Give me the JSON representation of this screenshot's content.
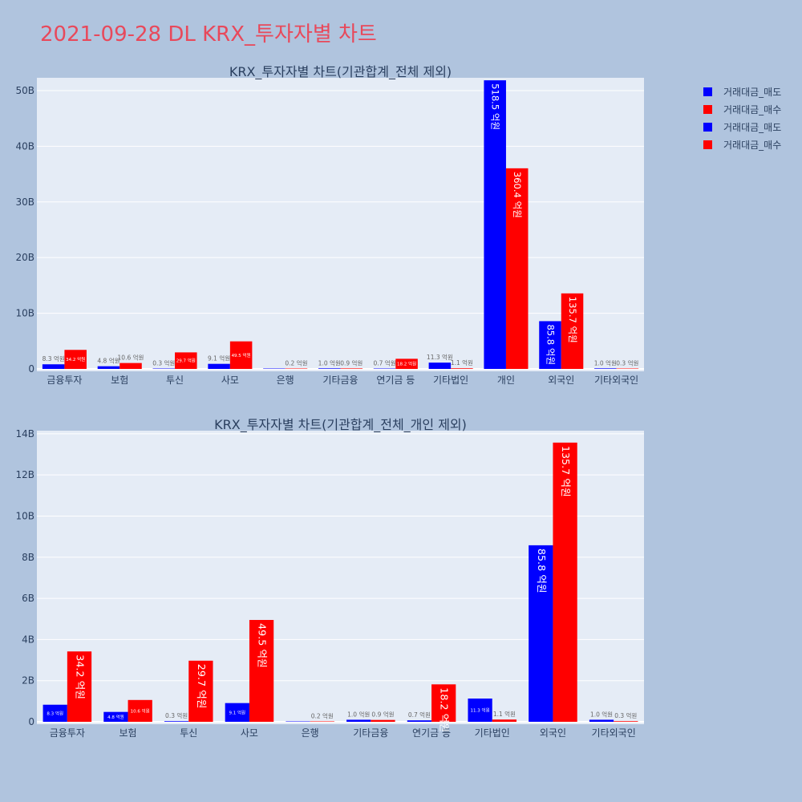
{
  "main_title": "2021-09-28 DL KRX_투자자별 차트",
  "colors": {
    "sell": "#0000ff",
    "buy": "#ff0000",
    "plot_bg": "#e5ecf6",
    "page_bg": "#b0c4de",
    "title": "#e8495b"
  },
  "legend": [
    "거래대금_매도",
    "거래대금_매수",
    "거래대금_매도",
    "거래대금_매수"
  ],
  "chart_data": [
    {
      "type": "bar",
      "title": "KRX_투자자별 차트(기관합계_전체 제외)",
      "categories": [
        "금융투자",
        "보험",
        "투신",
        "사모",
        "은행",
        "기타금융",
        "연기금 등",
        "기타법인",
        "개인",
        "외국인",
        "기타외국인"
      ],
      "series": [
        {
          "name": "거래대금_매도",
          "values": [
            0.83,
            0.48,
            0.03,
            0.91,
            0.0,
            0.1,
            0.07,
            1.13,
            51.85,
            8.58,
            0.1
          ],
          "labels": [
            "8.3 억원",
            "4.8 억원",
            "0.3 억원",
            "9.1 억원",
            "",
            "1.0 억원",
            "0.7 억원",
            "11.3 억원",
            "518.5 억원",
            "85.8 억원",
            "1.0 억원"
          ]
        },
        {
          "name": "거래대금_매수",
          "values": [
            3.42,
            1.06,
            2.97,
            4.95,
            0.02,
            0.09,
            1.82,
            0.11,
            36.04,
            13.57,
            0.03
          ],
          "labels": [
            "34.2 억원",
            "10.6 억원",
            "29.7 억원",
            "49.5 억원",
            "0.2 억원",
            "0.9 억원",
            "18.2 억원",
            "1.1 억원",
            "360.4 억원",
            "135.7 억원",
            "0.3 억원"
          ]
        }
      ],
      "yticks": [
        "0",
        "10B",
        "20B",
        "30B",
        "40B",
        "50B"
      ],
      "ylim": [
        0,
        53
      ]
    },
    {
      "type": "bar",
      "title": "KRX_투자자별 차트(기관합계_전체_개인 제외)",
      "categories": [
        "금융투자",
        "보험",
        "투신",
        "사모",
        "은행",
        "기타금융",
        "연기금 등",
        "기타법인",
        "외국인",
        "기타외국인"
      ],
      "series": [
        {
          "name": "거래대금_매도",
          "values": [
            0.83,
            0.48,
            0.03,
            0.91,
            0.0,
            0.1,
            0.07,
            1.13,
            8.58,
            0.1
          ],
          "labels": [
            "8.3 억원",
            "4.8 억원",
            "0.3 억원",
            "9.1 억원",
            "",
            "1.0 억원",
            "0.7 억원",
            "11.3 억원",
            "85.8 억원",
            "1.0 억원"
          ]
        },
        {
          "name": "거래대금_매수",
          "values": [
            3.42,
            1.06,
            2.97,
            4.95,
            0.02,
            0.09,
            1.82,
            0.11,
            13.57,
            0.03
          ],
          "labels": [
            "34.2 억원",
            "10.6 억원",
            "29.7 억원",
            "49.5 억원",
            "0.2 억원",
            "0.9 억원",
            "18.2 억원",
            "1.1 억원",
            "135.7 억원",
            "0.3 억원"
          ]
        }
      ],
      "yticks": [
        "0",
        "2B",
        "4B",
        "6B",
        "8B",
        "10B",
        "12B",
        "14B"
      ],
      "ylim": [
        0,
        14.2
      ]
    }
  ]
}
